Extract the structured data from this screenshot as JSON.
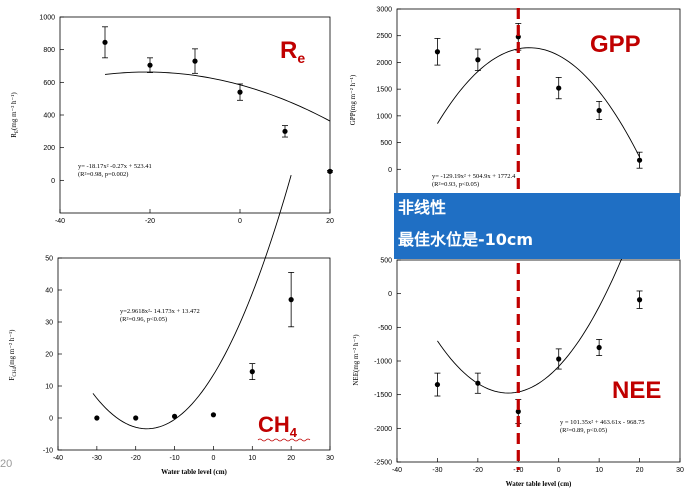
{
  "colors": {
    "title": "#c00000",
    "divider": "#c00000",
    "overlay_bg": "#1f6fc4",
    "overlay_text": "#ffffff",
    "curve": "#000000"
  },
  "overlay": {
    "line1": "非线性",
    "line2": "最佳水位是-10cm"
  },
  "footer_fragment": "20",
  "chart_data": [
    {
      "id": "re",
      "type": "scatter",
      "title": "R",
      "title_sub": "e",
      "ylabel": "R",
      "ylabel_sub": "E",
      "ylabel_rest": "(mg m⁻² h⁻¹)",
      "xlabel": "",
      "xlim": [
        -40,
        20
      ],
      "ylim": [
        -200,
        1000
      ],
      "xticks": [
        -40,
        -20,
        0,
        20
      ],
      "xtick_labels": [
        "-40",
        "-20",
        "0",
        "20"
      ],
      "yticks": [
        0,
        200,
        400,
        600,
        800,
        1000
      ],
      "ytick_labels": [
        "0",
        "200",
        "400",
        "600",
        "800",
        "1000"
      ],
      "points": [
        {
          "x": -30,
          "y": 845,
          "err": 95
        },
        {
          "x": -20,
          "y": 705,
          "err": 45
        },
        {
          "x": -10,
          "y": 730,
          "err": 75
        },
        {
          "x": 0,
          "y": 540,
          "err": 50
        },
        {
          "x": 10,
          "y": 300,
          "err": 35
        },
        {
          "x": 20,
          "y": 55,
          "err": 5
        }
      ],
      "fit": {
        "a": -0.18,
        "b": -7.5,
        "c": 585,
        "xrange": [
          -30,
          20
        ]
      },
      "equation": [
        "y= -18.17x² -0.27x + 523.41",
        "(R²=0.98, p=0.002)"
      ]
    },
    {
      "id": "gpp",
      "type": "scatter",
      "title": "GPP",
      "ylabel": "GPP(mg m⁻² h⁻¹)",
      "xlabel": "",
      "xlim": [
        -40,
        30
      ],
      "ylim": [
        -500,
        3000
      ],
      "xticks": [],
      "xtick_labels": [],
      "yticks": [
        0,
        500,
        1000,
        1500,
        2000,
        2500,
        3000
      ],
      "ytick_labels": [
        "0",
        "500",
        "1000",
        "1500",
        "2000",
        "2500",
        "3000"
      ],
      "points": [
        {
          "x": -30,
          "y": 2200,
          "err": 250
        },
        {
          "x": -20,
          "y": 2050,
          "err": 200
        },
        {
          "x": -10,
          "y": 2480,
          "err": 250
        },
        {
          "x": 0,
          "y": 1520,
          "err": 200
        },
        {
          "x": 10,
          "y": 1100,
          "err": 170
        },
        {
          "x": 20,
          "y": 170,
          "err": 150
        }
      ],
      "fit": {
        "a": -2.75,
        "b": -40,
        "c": 2130,
        "xrange": [
          -30,
          20
        ]
      },
      "equation": [
        "y= -129.19x² + 504.9x + 1772.4",
        "(R²=0.93, p<0.05)"
      ]
    },
    {
      "id": "ch4",
      "type": "scatter",
      "title": "CH",
      "title_sub": "4",
      "ylabel": "F",
      "ylabel_sub": "CH4",
      "ylabel_rest": "(mg m⁻² h⁻¹)",
      "xlabel": "Water table level (cm)",
      "xlim": [
        -40,
        30
      ],
      "ylim": [
        -10,
        50
      ],
      "xticks": [
        -40,
        -30,
        -20,
        -10,
        0,
        10,
        20,
        30
      ],
      "xtick_labels": [
        "-40",
        "-30",
        "-20",
        "-10",
        "0",
        "10",
        "20",
        "30"
      ],
      "yticks": [
        -10,
        0,
        10,
        20,
        30,
        40,
        50
      ],
      "ytick_labels": [
        "-10",
        "0",
        "10",
        "20",
        "30",
        "40",
        "50"
      ],
      "points": [
        {
          "x": -30,
          "y": 0,
          "err": 0
        },
        {
          "x": -20,
          "y": 0,
          "err": 0
        },
        {
          "x": -10,
          "y": 0.5,
          "err": 0
        },
        {
          "x": 0,
          "y": 1,
          "err": 0
        },
        {
          "x": 10,
          "y": 14.5,
          "err": 2.5
        },
        {
          "x": 20,
          "y": 37,
          "err": 8.5
        }
      ],
      "fit": {
        "a": 0.0575,
        "b": 1.97,
        "c": 13.5,
        "xrange": [
          -31,
          20
        ]
      },
      "equation": [
        "y=2.9618x²- 14.173x + 13.472",
        "(R²=0.96, p<0.05)"
      ]
    },
    {
      "id": "nee",
      "type": "scatter",
      "title": "NEE",
      "ylabel": "NEE(mg m⁻² h⁻¹)",
      "xlabel": "Water table level (cm)",
      "xlim": [
        -40,
        30
      ],
      "ylim": [
        -2500,
        500
      ],
      "xticks": [
        -40,
        -30,
        -20,
        -10,
        0,
        10,
        20,
        30
      ],
      "xtick_labels": [
        "-40",
        "-30",
        "-20",
        "-10",
        "0",
        "10",
        "20",
        "30"
      ],
      "yticks": [
        -2500,
        -2000,
        -1500,
        -1000,
        -500,
        0,
        500
      ],
      "ytick_labels": [
        "-2500",
        "-2000",
        "-1500",
        "-1000",
        "-500",
        "0",
        "500"
      ],
      "points": [
        {
          "x": -30,
          "y": -1350,
          "err": 170
        },
        {
          "x": -20,
          "y": -1330,
          "err": 150
        },
        {
          "x": -10,
          "y": -1750,
          "err": 180
        },
        {
          "x": 0,
          "y": -970,
          "err": 150
        },
        {
          "x": 10,
          "y": -800,
          "err": 120
        },
        {
          "x": 20,
          "y": -90,
          "err": 130
        }
      ],
      "fit": {
        "a": 2.53,
        "b": 63.3,
        "c": -1080,
        "xrange": [
          -30,
          20
        ]
      },
      "equation": [
        "y = 101.35x² + 463.61x - 968.75",
        "(R²=0.89, p<0.05)"
      ]
    }
  ]
}
